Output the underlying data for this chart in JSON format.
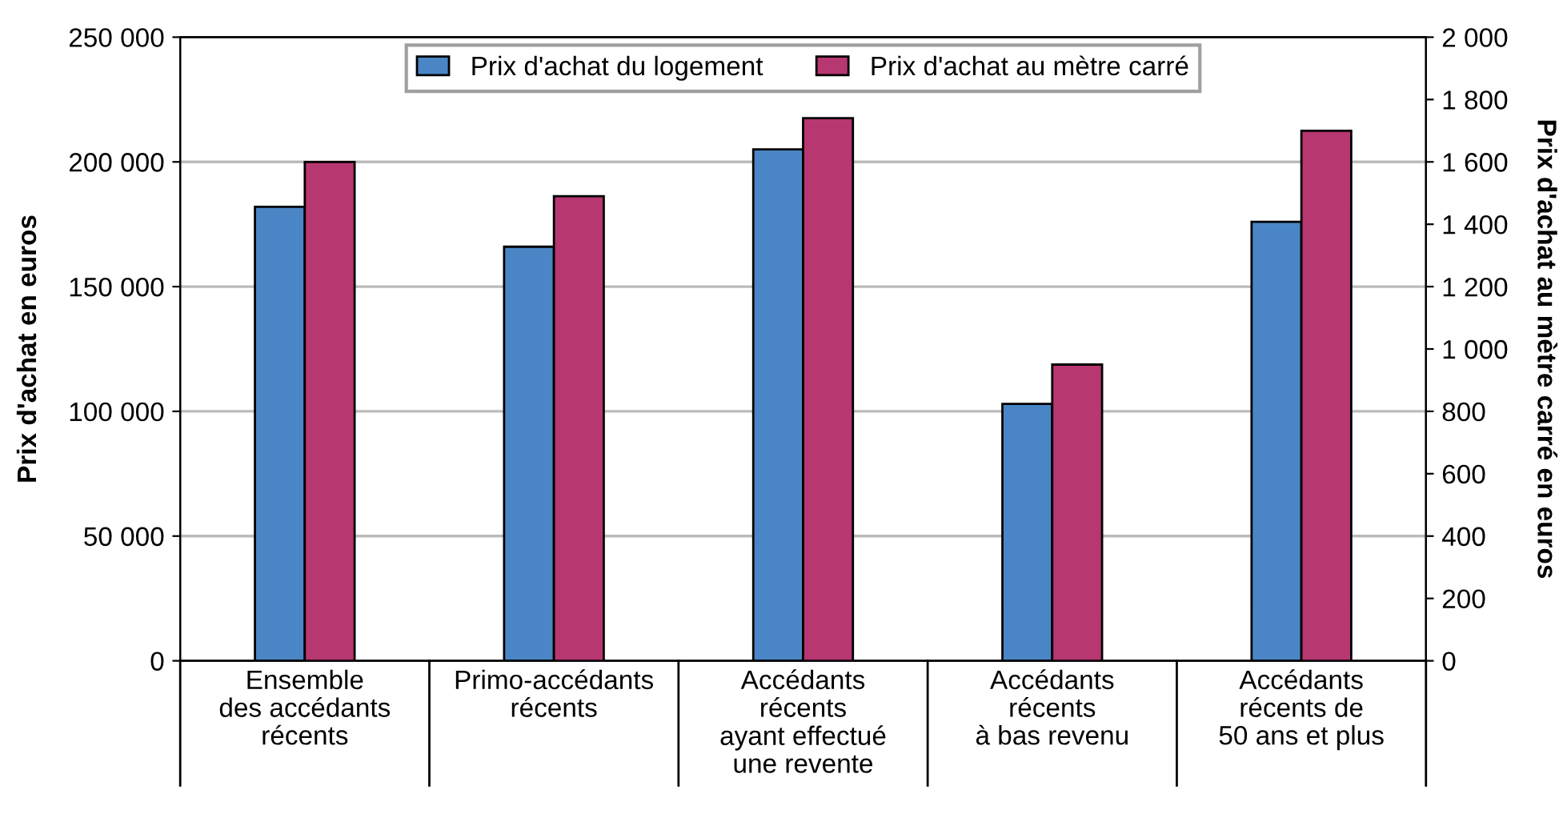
{
  "chart_data": {
    "type": "bar",
    "ylabel": "Prix d'achat en euros",
    "y2label": "Prix d'achat au mètre carré en euros",
    "categories": [
      "Ensemble\ndes accédants\nrécents",
      "Primo-accédants\nrécents",
      "Accédants\nrécents\nayant effectué\nune revente",
      "Accédants\nrécents\nà bas revenu",
      "Accédants\nrécents de\n50 ans et plus"
    ],
    "series": [
      {
        "name": "Prix d'achat du logement",
        "color": "#4a86c5",
        "values": [
          182000,
          166000,
          205000,
          103000,
          176000
        ]
      },
      {
        "name": "Prix d'achat au mètre carré",
        "color": "#b73771",
        "values": [
          1600,
          1490,
          1740,
          950,
          1700
        ],
        "axis": "y2"
      }
    ],
    "ylim": [
      0,
      250000
    ],
    "yticks": [
      {
        "value": 0,
        "label": "0"
      },
      {
        "value": 50000,
        "label": "50 000"
      },
      {
        "value": 100000,
        "label": "100 000"
      },
      {
        "value": 150000,
        "label": "150 000"
      },
      {
        "value": 200000,
        "label": "200 000"
      },
      {
        "value": 250000,
        "label": "250 000"
      }
    ],
    "y2lim": [
      0,
      2000
    ],
    "y2ticks": [
      {
        "value": 0,
        "label": "0"
      },
      {
        "value": 200,
        "label": "200"
      },
      {
        "value": 400,
        "label": "400"
      },
      {
        "value": 600,
        "label": "600"
      },
      {
        "value": 800,
        "label": "800"
      },
      {
        "value": 1000,
        "label": "1 000"
      },
      {
        "value": 1200,
        "label": "1 200"
      },
      {
        "value": 1400,
        "label": "1 400"
      },
      {
        "value": 1600,
        "label": "1 600"
      },
      {
        "value": 1800,
        "label": "1 800"
      },
      {
        "value": 2000,
        "label": "2 000"
      }
    ],
    "grid": "y",
    "legend": "top"
  }
}
